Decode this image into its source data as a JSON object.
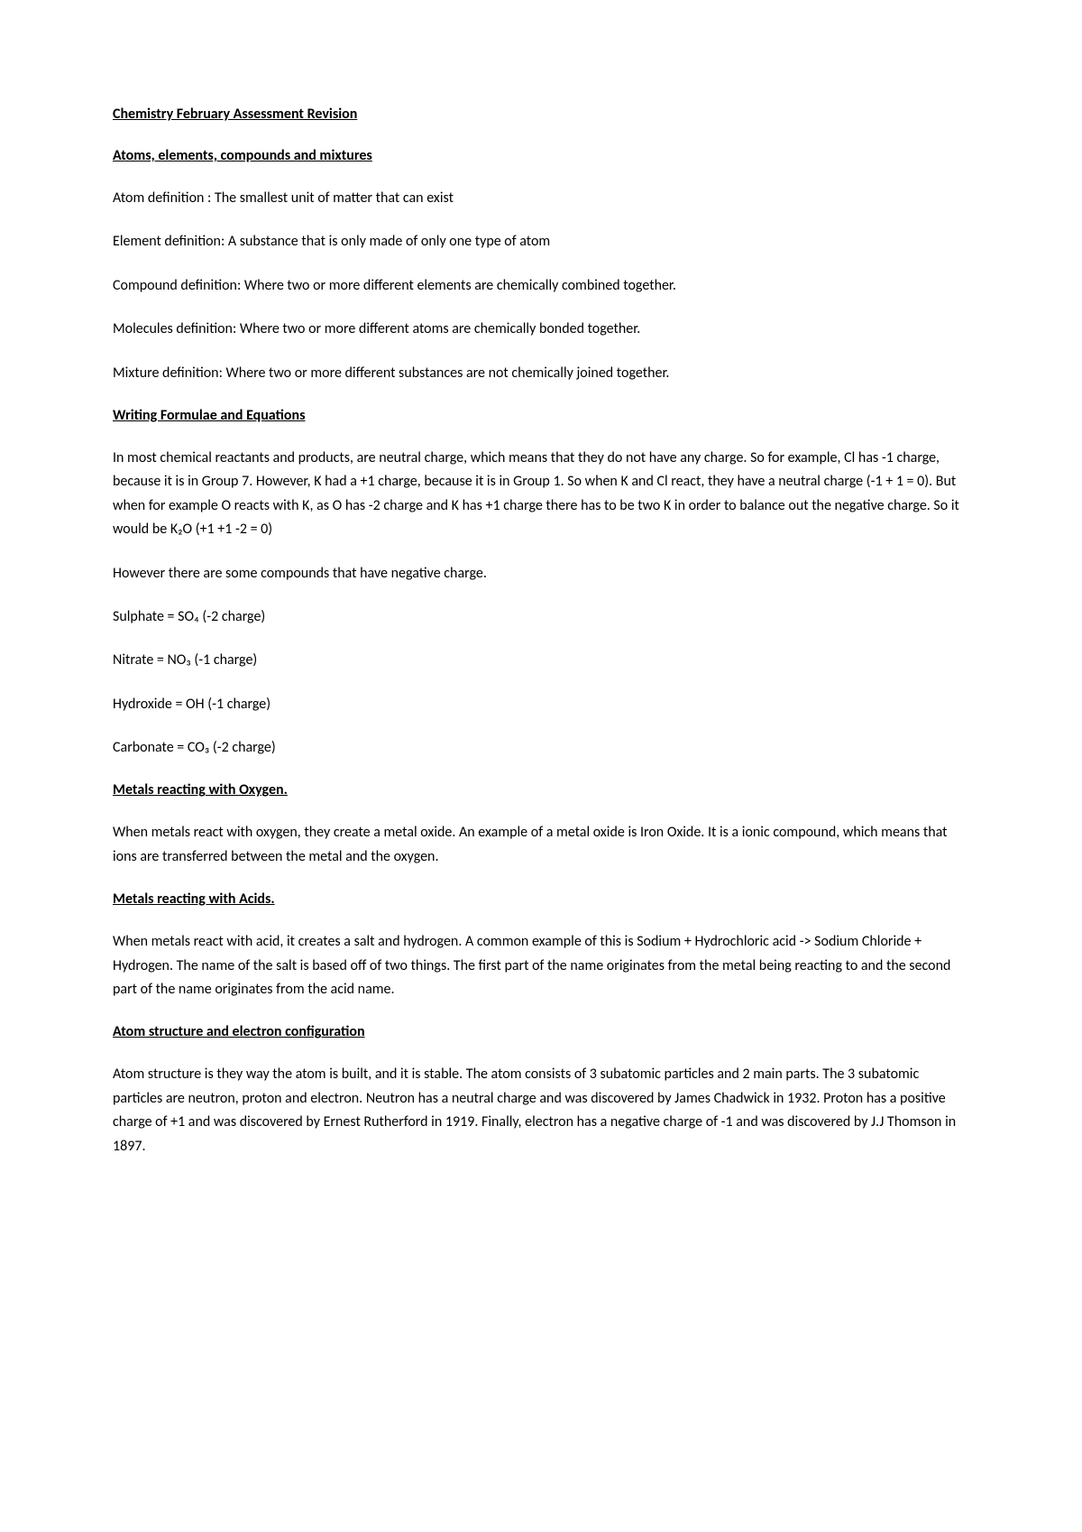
{
  "title": "Chemistry February Assessment Revision",
  "sections": {
    "atoms": {
      "heading": "Atoms, elements, compounds and mixtures",
      "atom_def": "Atom definition : The smallest unit of matter that can exist",
      "element_def": "Element definition: A substance that is only made of only one type of atom",
      "compound_def": "Compound definition: Where two or more different elements are chemically combined together.",
      "molecules_def": "Molecules definition: Where two or more different atoms are chemically bonded together.",
      "mixture_def": "Mixture definition: Where two or more different substances are not chemically joined together."
    },
    "formulae": {
      "heading": "Writing Formulae and Equations",
      "para1": "In most chemical reactants and products, are neutral charge, which means that they do not have any charge. So for example, Cl has -1 charge, because it is in Group 7. However, K had a +1 charge, because it is in Group 1. So when K and Cl react, they have a neutral charge (-1 + 1 = 0). But when for example O reacts with K, as O has -2 charge and K has +1 charge there has to be two K in order to balance out the negative charge. So it would be K₂O (+1 +1 -2 = 0)",
      "para2": "However there are some compounds that have negative charge.",
      "sulphate": "Sulphate = SO₄ (-2 charge)",
      "nitrate": "Nitrate = NO₃ (-1 charge)",
      "hydroxide": "Hydroxide = OH (-1 charge)",
      "carbonate": "Carbonate = CO₃ (-2 charge)"
    },
    "metals_oxygen": {
      "heading": "Metals reacting with Oxygen.",
      "para1": "When metals react with oxygen, they create a metal oxide. An example of a metal oxide is Iron Oxide. It is a ionic compound, which means that ions are transferred between the metal and the oxygen."
    },
    "metals_acids": {
      "heading": "Metals reacting with Acids.",
      "para1": "When metals react with acid, it creates a salt and hydrogen. A common example of this is Sodium + Hydrochloric acid -> Sodium Chloride + Hydrogen. The name of the salt is based off of two things. The first part of the name originates from the metal being reacting to and the second part of the name originates from the acid name."
    },
    "atom_structure": {
      "heading": "Atom structure and electron configuration",
      "para1": "Atom structure is they way the atom is built, and it is stable. The atom consists of 3 subatomic particles and 2 main parts. The 3 subatomic particles are neutron, proton and electron. Neutron has a neutral charge and was discovered by James Chadwick in 1932. Proton has a positive charge of +1 and was discovered by Ernest Rutherford in 1919. Finally, electron has a negative charge of -1 and was discovered by J.J Thomson in 1897."
    }
  }
}
